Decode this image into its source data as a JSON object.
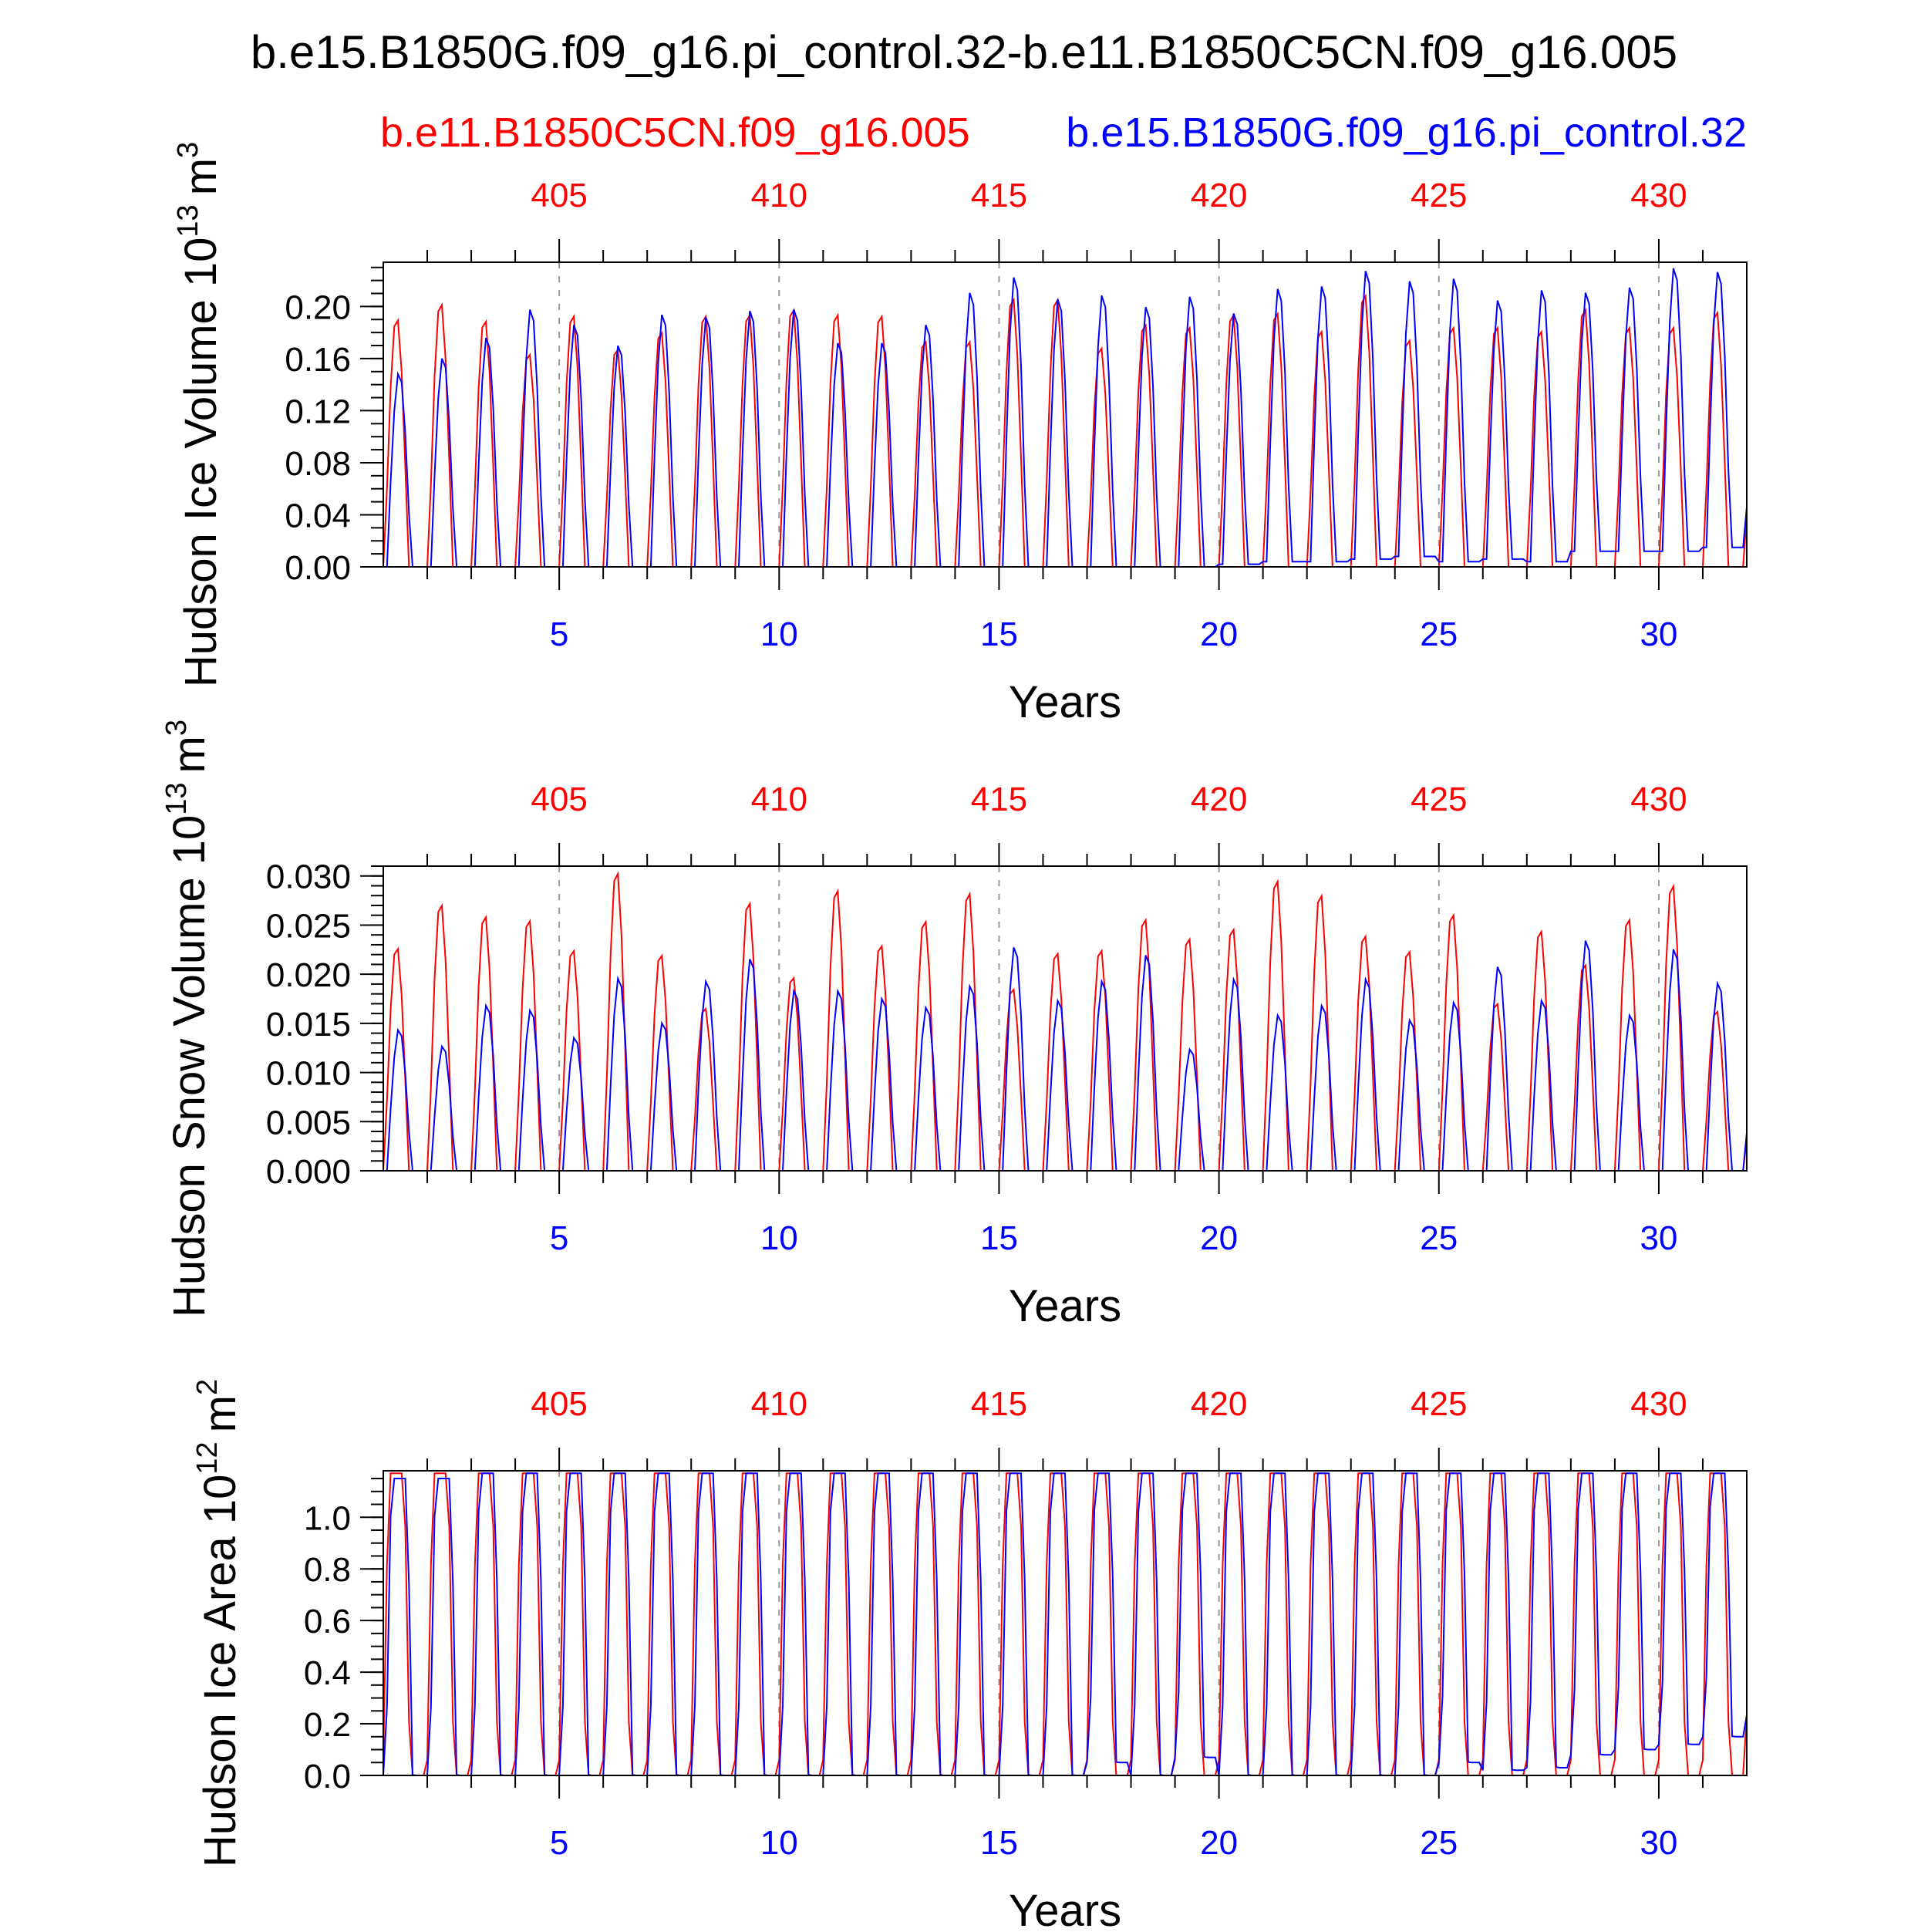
{
  "title": "b.e15.B1850G.f09_g16.pi_control.32-b.e11.B1850C5CN.f09_g16.005",
  "legend": {
    "red_label": "b.e11.B1850C5CN.f09_g16.005",
    "blue_label": "b.e15.B1850G.f09_g16.pi_control.32"
  },
  "colors": {
    "red": "#ff0000",
    "blue": "#0000ff",
    "axis": "#000000",
    "grid": "#999999"
  },
  "chart_data": [
    {
      "type": "line",
      "title": "",
      "ylabel": "Hudson Ice Volume 10^13 m^3",
      "ylabel_main": "Hudson Ice Volume 10",
      "ylabel_exp": "13",
      "ylabel_unit": "m",
      "ylabel_unit_exp": "3",
      "xlabel": "Years",
      "xlim": [
        1,
        32
      ],
      "ylim": [
        0,
        0.234
      ],
      "yticks": [
        "0.00",
        "0.04",
        "0.08",
        "0.12",
        "0.16",
        "0.20"
      ],
      "yminor_step": 0.01,
      "bottom_xticks": [
        "5",
        "10",
        "15",
        "20",
        "25",
        "30"
      ],
      "top_xticks": [
        "405",
        "410",
        "415",
        "420",
        "425",
        "430"
      ],
      "grid_lines_at": [
        5,
        10,
        15,
        20,
        25,
        30
      ],
      "series": [
        {
          "name": "b.e11.B1850C5CN.f09_g16.005",
          "color": "red",
          "annual_peak": [
            0.193,
            0.205,
            0.192,
            0.166,
            0.196,
            0.17,
            0.183,
            0.196,
            0.197,
            0.201,
            0.197,
            0.196,
            0.176,
            0.176,
            0.209,
            0.209,
            0.171,
            0.189,
            0.187,
            0.197,
            0.198,
            0.184,
            0.212,
            0.177,
            0.187,
            0.187,
            0.184,
            0.201,
            0.187,
            0.187,
            0.199
          ],
          "annual_min": [
            0,
            0,
            0,
            0,
            0,
            0,
            0,
            0,
            0,
            0,
            0,
            0,
            0,
            0,
            0,
            0,
            0,
            0,
            0,
            0,
            0,
            0,
            0,
            0,
            0,
            0,
            0,
            0,
            0,
            0,
            0
          ]
        },
        {
          "name": "b.e15.B1850G.f09_g16.pi_control.32",
          "color": "blue",
          "annual_peak": [
            0.15,
            0.162,
            0.178,
            0.2,
            0.188,
            0.172,
            0.196,
            0.194,
            0.199,
            0.2,
            0.174,
            0.174,
            0.188,
            0.213,
            0.225,
            0.208,
            0.211,
            0.202,
            0.21,
            0.197,
            0.216,
            0.218,
            0.23,
            0.222,
            0.224,
            0.207,
            0.215,
            0.213,
            0.217,
            0.232,
            0.229
          ],
          "annual_min": [
            0,
            0,
            0,
            0,
            0,
            0,
            0,
            0,
            0,
            0,
            0,
            0,
            0,
            0,
            0,
            0,
            0,
            0,
            0,
            0.002,
            0.004,
            0.004,
            0.006,
            0.008,
            0.004,
            0.006,
            0.004,
            0.012,
            0.012,
            0.012,
            0.015
          ]
        }
      ]
    },
    {
      "type": "line",
      "title": "",
      "ylabel": "Hudson Snow Volume 10^13 m^3",
      "ylabel_main": "Hudson Snow Volume 10",
      "ylabel_exp": "13",
      "ylabel_unit": "m",
      "ylabel_unit_exp": "3",
      "xlabel": "Years",
      "xlim": [
        1,
        32
      ],
      "ylim": [
        0,
        0.031
      ],
      "yticks": [
        "0.000",
        "0.005",
        "0.010",
        "0.015",
        "0.020",
        "0.025",
        "0.030"
      ],
      "yminor_step": 0.001,
      "bottom_xticks": [
        "5",
        "10",
        "15",
        "20",
        "25",
        "30"
      ],
      "top_xticks": [
        "405",
        "410",
        "415",
        "420",
        "425",
        "430"
      ],
      "grid_lines_at": [
        5,
        10,
        15,
        20,
        25,
        30
      ],
      "series": [
        {
          "name": "b.e11.B1850C5CN.f09_g16.005",
          "color": "red",
          "annual_peak": [
            0.023,
            0.0275,
            0.0263,
            0.0259,
            0.0228,
            0.0308,
            0.0223,
            0.0168,
            0.0277,
            0.02,
            0.029,
            0.0233,
            0.0258,
            0.0287,
            0.0188,
            0.0225,
            0.0228,
            0.026,
            0.024,
            0.025,
            0.03,
            0.0285,
            0.0243,
            0.0227,
            0.0265,
            0.0173,
            0.0248,
            0.0213,
            0.026,
            0.0295,
            0.0165
          ],
          "annual_min": [
            0,
            0,
            0,
            0,
            0,
            0,
            0,
            0,
            0,
            0,
            0,
            0,
            0,
            0,
            0,
            0,
            0,
            0,
            0,
            0,
            0,
            0,
            0,
            0,
            0,
            0,
            0,
            0,
            0,
            0,
            0
          ]
        },
        {
          "name": "b.e15.B1850G.f09_g16.pi_control.32",
          "color": "blue",
          "annual_peak": [
            0.0145,
            0.0128,
            0.017,
            0.0165,
            0.0137,
            0.0198,
            0.0152,
            0.0195,
            0.0218,
            0.0185,
            0.0185,
            0.0177,
            0.0168,
            0.019,
            0.023,
            0.0175,
            0.0195,
            0.0222,
            0.0125,
            0.0197,
            0.016,
            0.017,
            0.0197,
            0.0155,
            0.0173,
            0.021,
            0.0175,
            0.0237,
            0.016,
            0.0228,
            0.0193
          ],
          "annual_min": [
            0,
            0,
            0,
            0,
            0,
            0,
            0,
            0,
            0,
            0,
            0,
            0,
            0,
            0,
            0,
            0,
            0,
            0,
            0,
            0,
            0,
            0,
            0,
            0,
            0,
            0,
            0,
            0,
            0,
            0,
            0
          ]
        }
      ]
    },
    {
      "type": "line",
      "title": "",
      "ylabel": "Hudson Ice Area 10^12 m^2",
      "ylabel_main": "Hudson Ice Area 10",
      "ylabel_exp": "12",
      "ylabel_unit": "m",
      "ylabel_unit_exp": "2",
      "xlabel": "Years",
      "xlim": [
        1,
        32
      ],
      "ylim": [
        0,
        1.18
      ],
      "yticks": [
        "0.0",
        "0.2",
        "0.4",
        "0.6",
        "0.8",
        "1.0"
      ],
      "yminor_step": 0.05,
      "bottom_xticks": [
        "5",
        "10",
        "15",
        "20",
        "25",
        "30"
      ],
      "top_xticks": [
        "405",
        "410",
        "415",
        "420",
        "425",
        "430"
      ],
      "grid_lines_at": [
        5,
        10,
        15,
        20,
        25,
        30
      ],
      "series": [
        {
          "name": "b.e11.B1850C5CN.f09_g16.005",
          "color": "red",
          "annual_peak": [
            1.17,
            1.17,
            1.17,
            1.17,
            1.17,
            1.17,
            1.17,
            1.17,
            1.17,
            1.17,
            1.17,
            1.17,
            1.17,
            1.17,
            1.17,
            1.17,
            1.17,
            1.17,
            1.17,
            1.17,
            1.17,
            1.17,
            1.17,
            1.17,
            1.17,
            1.17,
            1.17,
            1.17,
            1.17,
            1.17,
            1.17
          ],
          "annual_min": [
            0,
            0,
            0,
            0,
            0,
            0,
            0,
            0,
            0,
            0,
            0,
            0,
            0,
            0,
            0,
            0,
            0,
            0,
            0,
            0,
            0,
            0,
            0,
            0,
            0,
            0,
            0,
            0,
            0,
            0,
            0
          ]
        },
        {
          "name": "b.e15.B1850G.f09_g16.pi_control.32",
          "color": "blue",
          "annual_peak": [
            1.15,
            1.15,
            1.17,
            1.17,
            1.17,
            1.17,
            1.17,
            1.17,
            1.17,
            1.17,
            1.17,
            1.17,
            1.17,
            1.17,
            1.17,
            1.17,
            1.17,
            1.17,
            1.17,
            1.17,
            1.17,
            1.17,
            1.17,
            1.17,
            1.17,
            1.17,
            1.17,
            1.17,
            1.17,
            1.17,
            1.17
          ],
          "annual_min": [
            0,
            0,
            0,
            0,
            0,
            0,
            0,
            0,
            0,
            0,
            0,
            0,
            0,
            0,
            0,
            0,
            0.05,
            0,
            0.07,
            0,
            0,
            0,
            0,
            0,
            0.05,
            0.02,
            0.03,
            0.08,
            0.1,
            0.12,
            0.15
          ]
        }
      ]
    }
  ]
}
